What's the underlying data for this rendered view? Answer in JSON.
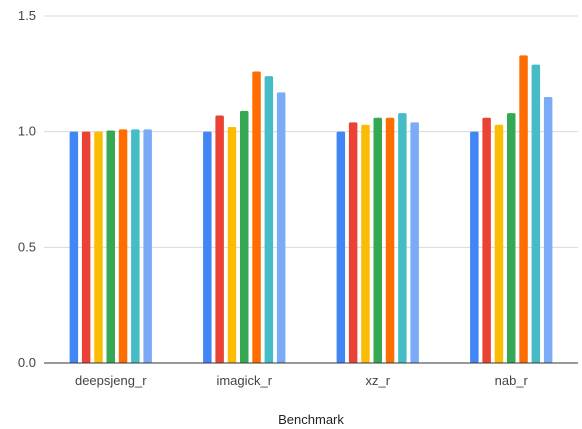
{
  "chart_data": {
    "type": "bar",
    "title": "",
    "xlabel": "Benchmark",
    "ylabel": "",
    "ylim": [
      0,
      1.5
    ],
    "yticks": [
      "0.0",
      "0.5",
      "1.0",
      "1.5"
    ],
    "ytick_values": [
      0,
      0.5,
      1.0,
      1.5
    ],
    "grid": true,
    "legend": "none",
    "categories": [
      "deepsjeng_r",
      "imagick_r",
      "xz_r",
      "nab_r"
    ],
    "series": [
      {
        "color": "#4285F4",
        "values": [
          1.0,
          1.0,
          1.0,
          1.0
        ]
      },
      {
        "color": "#EA4335",
        "values": [
          1.0,
          1.07,
          1.04,
          1.06
        ]
      },
      {
        "color": "#FBBC04",
        "values": [
          1.0,
          1.02,
          1.03,
          1.03
        ]
      },
      {
        "color": "#34A853",
        "values": [
          1.005,
          1.09,
          1.06,
          1.08
        ]
      },
      {
        "color": "#FF6D01",
        "values": [
          1.01,
          1.26,
          1.06,
          1.33
        ]
      },
      {
        "color": "#46BDC6",
        "values": [
          1.01,
          1.24,
          1.08,
          1.29
        ]
      },
      {
        "color": "#7BAAF7",
        "values": [
          1.01,
          1.17,
          1.04,
          1.15
        ]
      }
    ]
  }
}
